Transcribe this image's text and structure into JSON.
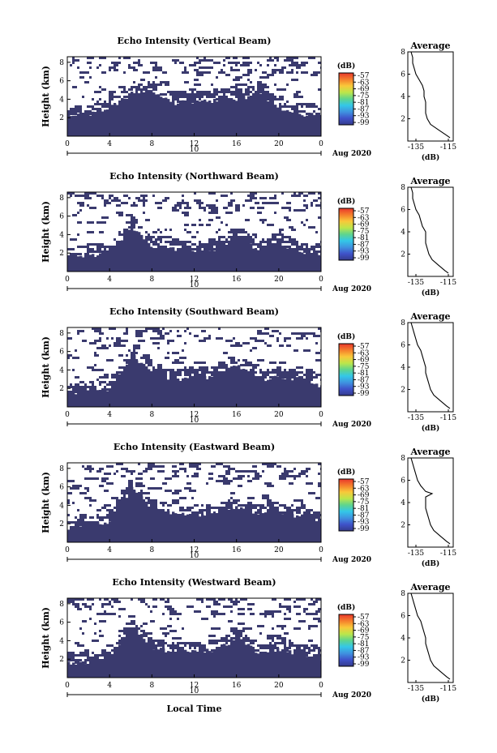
{
  "chart_data": [
    {
      "type": "heatmap",
      "title": "Echo Intensity (Vertical Beam)",
      "ylabel": "Height (km)",
      "x": [
        0,
        4,
        8,
        12,
        16,
        20,
        0
      ],
      "yticks": [
        2,
        4,
        6,
        8
      ],
      "date_day": "10",
      "date_label": "Aug 2020",
      "colorbar": {
        "unit": "(dB)",
        "labels": [
          "-57",
          "-63",
          "-69",
          "-75",
          "-81",
          "-87",
          "-93",
          "-99"
        ]
      },
      "echo_top_km": [
        2.2,
        2.4,
        3.1,
        4.6,
        4.8,
        3.6,
        3.8,
        3.8,
        4.0,
        4.6,
        3.0,
        2.4,
        2.2
      ],
      "average": {
        "title": "Average",
        "xlabel": "(dB)",
        "xticks": [
          "-135",
          "-115"
        ],
        "xlim": [
          -140,
          -112
        ],
        "ylim": [
          0,
          8
        ],
        "yticks": [
          2,
          4,
          6,
          8
        ],
        "height_km": [
          0.3,
          0.5,
          1.0,
          1.5,
          2.0,
          2.5,
          3.0,
          3.5,
          4.0,
          4.5,
          5.0,
          5.5,
          6.0,
          6.5,
          7.0,
          7.5,
          8.0
        ],
        "db": [
          -114,
          -116,
          -121,
          -126,
          -128,
          -129,
          -129,
          -129,
          -130,
          -130,
          -131,
          -133,
          -135,
          -136,
          -137,
          -137,
          -138
        ]
      }
    },
    {
      "type": "heatmap",
      "title": "Echo Intensity (Northward Beam)",
      "ylabel": "Height (km)",
      "x": [
        0,
        4,
        8,
        12,
        16,
        20,
        0
      ],
      "yticks": [
        2,
        4,
        6,
        8
      ],
      "date_day": "10",
      "date_label": "Aug 2020",
      "colorbar": {
        "unit": "(dB)",
        "labels": [
          "-57",
          "-63",
          "-69",
          "-75",
          "-81",
          "-87",
          "-93",
          "-99"
        ]
      },
      "echo_top_km": [
        1.5,
        1.7,
        2.0,
        4.9,
        2.6,
        2.4,
        2.3,
        2.5,
        3.6,
        2.4,
        3.1,
        2.0,
        1.8
      ],
      "average": {
        "title": "Average",
        "xlabel": "(dB)",
        "xticks": [
          "-135",
          "-115"
        ],
        "xlim": [
          -140,
          -112
        ],
        "ylim": [
          0,
          8
        ],
        "yticks": [
          2,
          4,
          6,
          8
        ],
        "height_km": [
          0.3,
          0.5,
          1.0,
          1.5,
          2.0,
          2.5,
          3.0,
          3.5,
          4.0,
          4.5,
          5.0,
          5.5,
          6.0,
          6.5,
          7.0,
          7.5,
          8.0
        ],
        "db": [
          -115,
          -117,
          -121,
          -125,
          -127,
          -128,
          -129,
          -129,
          -129,
          -131,
          -132,
          -133,
          -135,
          -136,
          -137,
          -137,
          -138
        ]
      }
    },
    {
      "type": "heatmap",
      "title": "Echo Intensity (Southward Beam)",
      "ylabel": "Height (km)",
      "x": [
        0,
        4,
        8,
        12,
        16,
        20,
        0
      ],
      "yticks": [
        2,
        4,
        6,
        8
      ],
      "date_day": "10",
      "date_label": "Aug 2020",
      "colorbar": {
        "unit": "(dB)",
        "labels": [
          "-57",
          "-63",
          "-69",
          "-75",
          "-81",
          "-87",
          "-93",
          "-99"
        ]
      },
      "echo_top_km": [
        1.4,
        1.6,
        2.0,
        5.6,
        3.6,
        2.9,
        3.1,
        3.3,
        4.5,
        2.9,
        3.3,
        3.0,
        2.2
      ],
      "average": {
        "title": "Average",
        "xlabel": "(dB)",
        "xticks": [
          "-135",
          "-115"
        ],
        "xlim": [
          -140,
          -112
        ],
        "ylim": [
          0,
          8
        ],
        "yticks": [
          2,
          4,
          6,
          8
        ],
        "height_km": [
          0.3,
          0.5,
          1.0,
          1.5,
          2.0,
          2.5,
          3.0,
          3.5,
          4.0,
          4.5,
          5.0,
          5.5,
          6.0,
          6.5,
          7.0,
          7.5,
          8.0
        ],
        "db": [
          -114,
          -116,
          -120,
          -124,
          -126,
          -127,
          -128,
          -129,
          -129,
          -130,
          -131,
          -132,
          -134,
          -135,
          -136,
          -137,
          -138
        ]
      }
    },
    {
      "type": "heatmap",
      "title": "Echo Intensity (Eastward Beam)",
      "ylabel": "Height (km)",
      "x": [
        0,
        4,
        8,
        12,
        16,
        20,
        0
      ],
      "yticks": [
        2,
        4,
        6,
        8
      ],
      "date_day": "10",
      "date_label": "Aug 2020",
      "colorbar": {
        "unit": "(dB)",
        "labels": [
          "-57",
          "-63",
          "-69",
          "-75",
          "-81",
          "-87",
          "-93",
          "-99"
        ]
      },
      "echo_top_km": [
        1.6,
        1.8,
        2.3,
        5.9,
        3.5,
        3.1,
        3.0,
        3.2,
        3.8,
        2.9,
        3.2,
        2.8,
        2.2
      ],
      "average": {
        "title": "Average",
        "xlabel": "(dB)",
        "xticks": [
          "-135",
          "-115"
        ],
        "xlim": [
          -140,
          -112
        ],
        "ylim": [
          0,
          8
        ],
        "yticks": [
          2,
          4,
          6,
          8
        ],
        "height_km": [
          0.3,
          0.5,
          1.0,
          1.5,
          2.0,
          2.5,
          3.0,
          3.5,
          4.0,
          4.5,
          4.8,
          5.0,
          5.5,
          6.0,
          6.5,
          7.0,
          7.5,
          8.0
        ],
        "db": [
          -114,
          -116,
          -120,
          -124,
          -126,
          -127,
          -128,
          -129,
          -129,
          -129,
          -125,
          -129,
          -132,
          -134,
          -135,
          -136,
          -137,
          -138
        ]
      }
    },
    {
      "type": "heatmap",
      "title": "Echo Intensity (Westward Beam)",
      "ylabel": "Height (km)",
      "x": [
        0,
        4,
        8,
        12,
        16,
        20,
        0
      ],
      "yticks": [
        2,
        4,
        6,
        8
      ],
      "date_day": "10",
      "date_label": "Aug 2020",
      "colorbar": {
        "unit": "(dB)",
        "labels": [
          "-57",
          "-63",
          "-69",
          "-75",
          "-81",
          "-87",
          "-93",
          "-99"
        ]
      },
      "echo_top_km": [
        1.5,
        1.7,
        2.1,
        5.7,
        3.1,
        2.8,
        2.8,
        3.0,
        4.3,
        2.7,
        3.0,
        2.6,
        2.0
      ],
      "average": {
        "title": "Average",
        "xlabel": "(dB)",
        "xticks": [
          "-135",
          "-115"
        ],
        "xlim": [
          -140,
          -112
        ],
        "ylim": [
          0,
          8
        ],
        "yticks": [
          2,
          4,
          6,
          8
        ],
        "height_km": [
          0.3,
          0.5,
          1.0,
          1.5,
          2.0,
          2.5,
          3.0,
          3.5,
          4.0,
          4.5,
          5.0,
          5.5,
          6.0,
          6.5,
          7.0,
          7.5,
          8.0
        ],
        "db": [
          -114,
          -116,
          -120,
          -124,
          -126,
          -127,
          -128,
          -129,
          -129,
          -130,
          -131,
          -132,
          -134,
          -135,
          -136,
          -137,
          -138
        ]
      }
    }
  ],
  "xlabel": "Local Time",
  "colors": {
    "echo": "#3a3a6e",
    "colorbar": [
      "#e8362b",
      "#f57e2c",
      "#f9c83a",
      "#bde64a",
      "#5fd58d",
      "#33c7e8",
      "#3f93e0",
      "#3f52c9",
      "#353a8c"
    ]
  }
}
